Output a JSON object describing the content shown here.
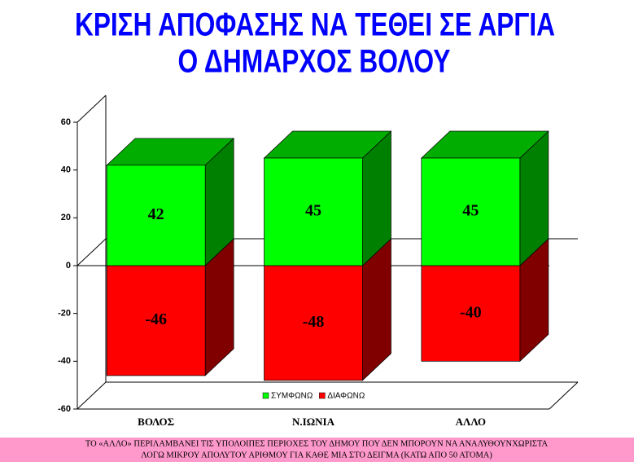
{
  "chart_data": {
    "type": "bar3d_stacked",
    "title": [
      "ΚΡΙΣΗ ΑΠΟΦΑΣΗΣ ΝΑ ΤΕΘΕΙ ΣΕ ΑΡΓΙΑ",
      "Ο ΔΗΜΑΡΧΟΣ ΒΟΛΟΥ"
    ],
    "categories": [
      "ΒΟΛΟΣ",
      "Ν.ΙΩΝΙΑ",
      "ΑΛΛΟ"
    ],
    "series": [
      {
        "name": "ΣΥΜΦΩΝΩ",
        "color": "#00ff00",
        "values": [
          42,
          45,
          45
        ]
      },
      {
        "name": "ΔΙΑΦΩΝΩ",
        "color": "#ff0000",
        "values": [
          -46,
          -48,
          -40
        ]
      }
    ],
    "ylim": [
      -60,
      60
    ],
    "yticks": [
      -60,
      -40,
      -20,
      0,
      20,
      40,
      60
    ],
    "grid": false,
    "legend": "bottom",
    "footnote": [
      "ΤΟ «ΑΛΛΟ» ΠΕΡΙΛΑΜΒΑΝΕΙ ΤΙΣ ΥΠΟΛΟΙΠΕΣ ΠΕΡΙΟΧΕΣ ΤΟΥ ΔΗΜΟΥ ΠΟΥ ΔΕΝ ΜΠΟΡΟΥΝ ΝΑ ΑΝΑΛΥΘΟΥΝΧΩΡΙΣΤΑ",
      "ΛΟΓΩ ΜΙΚΡΟΥ ΑΠΟΛΥΤΟΥ ΑΡΙΘΜΟΥ ΓΙΑ ΚΑΘΕ ΜΙΑ ΣΤΟ ΔΕΙΓΜΑ (ΚΑΤΩ ΑΠΟ 50 ΑΤΟΜΑ)"
    ]
  }
}
